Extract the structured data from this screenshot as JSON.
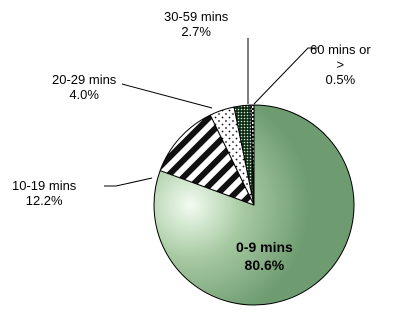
{
  "chart_data": {
    "type": "pie",
    "title": "",
    "slices": [
      {
        "label": "0-9 mins",
        "value": 80.6,
        "value_label": "80.6%",
        "fill": "radial-green"
      },
      {
        "label": "10-19 mins",
        "value": 12.2,
        "value_label": "12.2%",
        "fill": "diagonal-stripes"
      },
      {
        "label": "20-29 mins",
        "value": 4.0,
        "value_label": "4.0%",
        "fill": "sparse-dots"
      },
      {
        "label": "30-59 mins",
        "value": 2.7,
        "value_label": "2.7%",
        "fill": "dense-dots"
      },
      {
        "label": "60 mins or >",
        "value": 0.5,
        "value_label": "0.5%",
        "fill": "checker"
      }
    ],
    "colors": {
      "center": "#f2fcf0",
      "mid": "#a6c9a1",
      "edge": "#6e9b70",
      "outline": "#000000",
      "stripe": "#111111",
      "stripe_bg": "#ffffff",
      "dense_dot_bg": "#0f2b16",
      "dense_dot": "#cfe6ca"
    },
    "labels": {
      "s0": {
        "name": "0-9 mins",
        "pct": "80.6%"
      },
      "s1": {
        "name": "10-19 mins",
        "pct": "12.2%"
      },
      "s2": {
        "name": "20-29 mins",
        "pct": "4.0%"
      },
      "s3": {
        "name": "30-59 mins",
        "pct": "2.7%"
      },
      "s4": {
        "line1": "60 mins or",
        "line2": ">",
        "pct": "0.5%"
      }
    }
  }
}
